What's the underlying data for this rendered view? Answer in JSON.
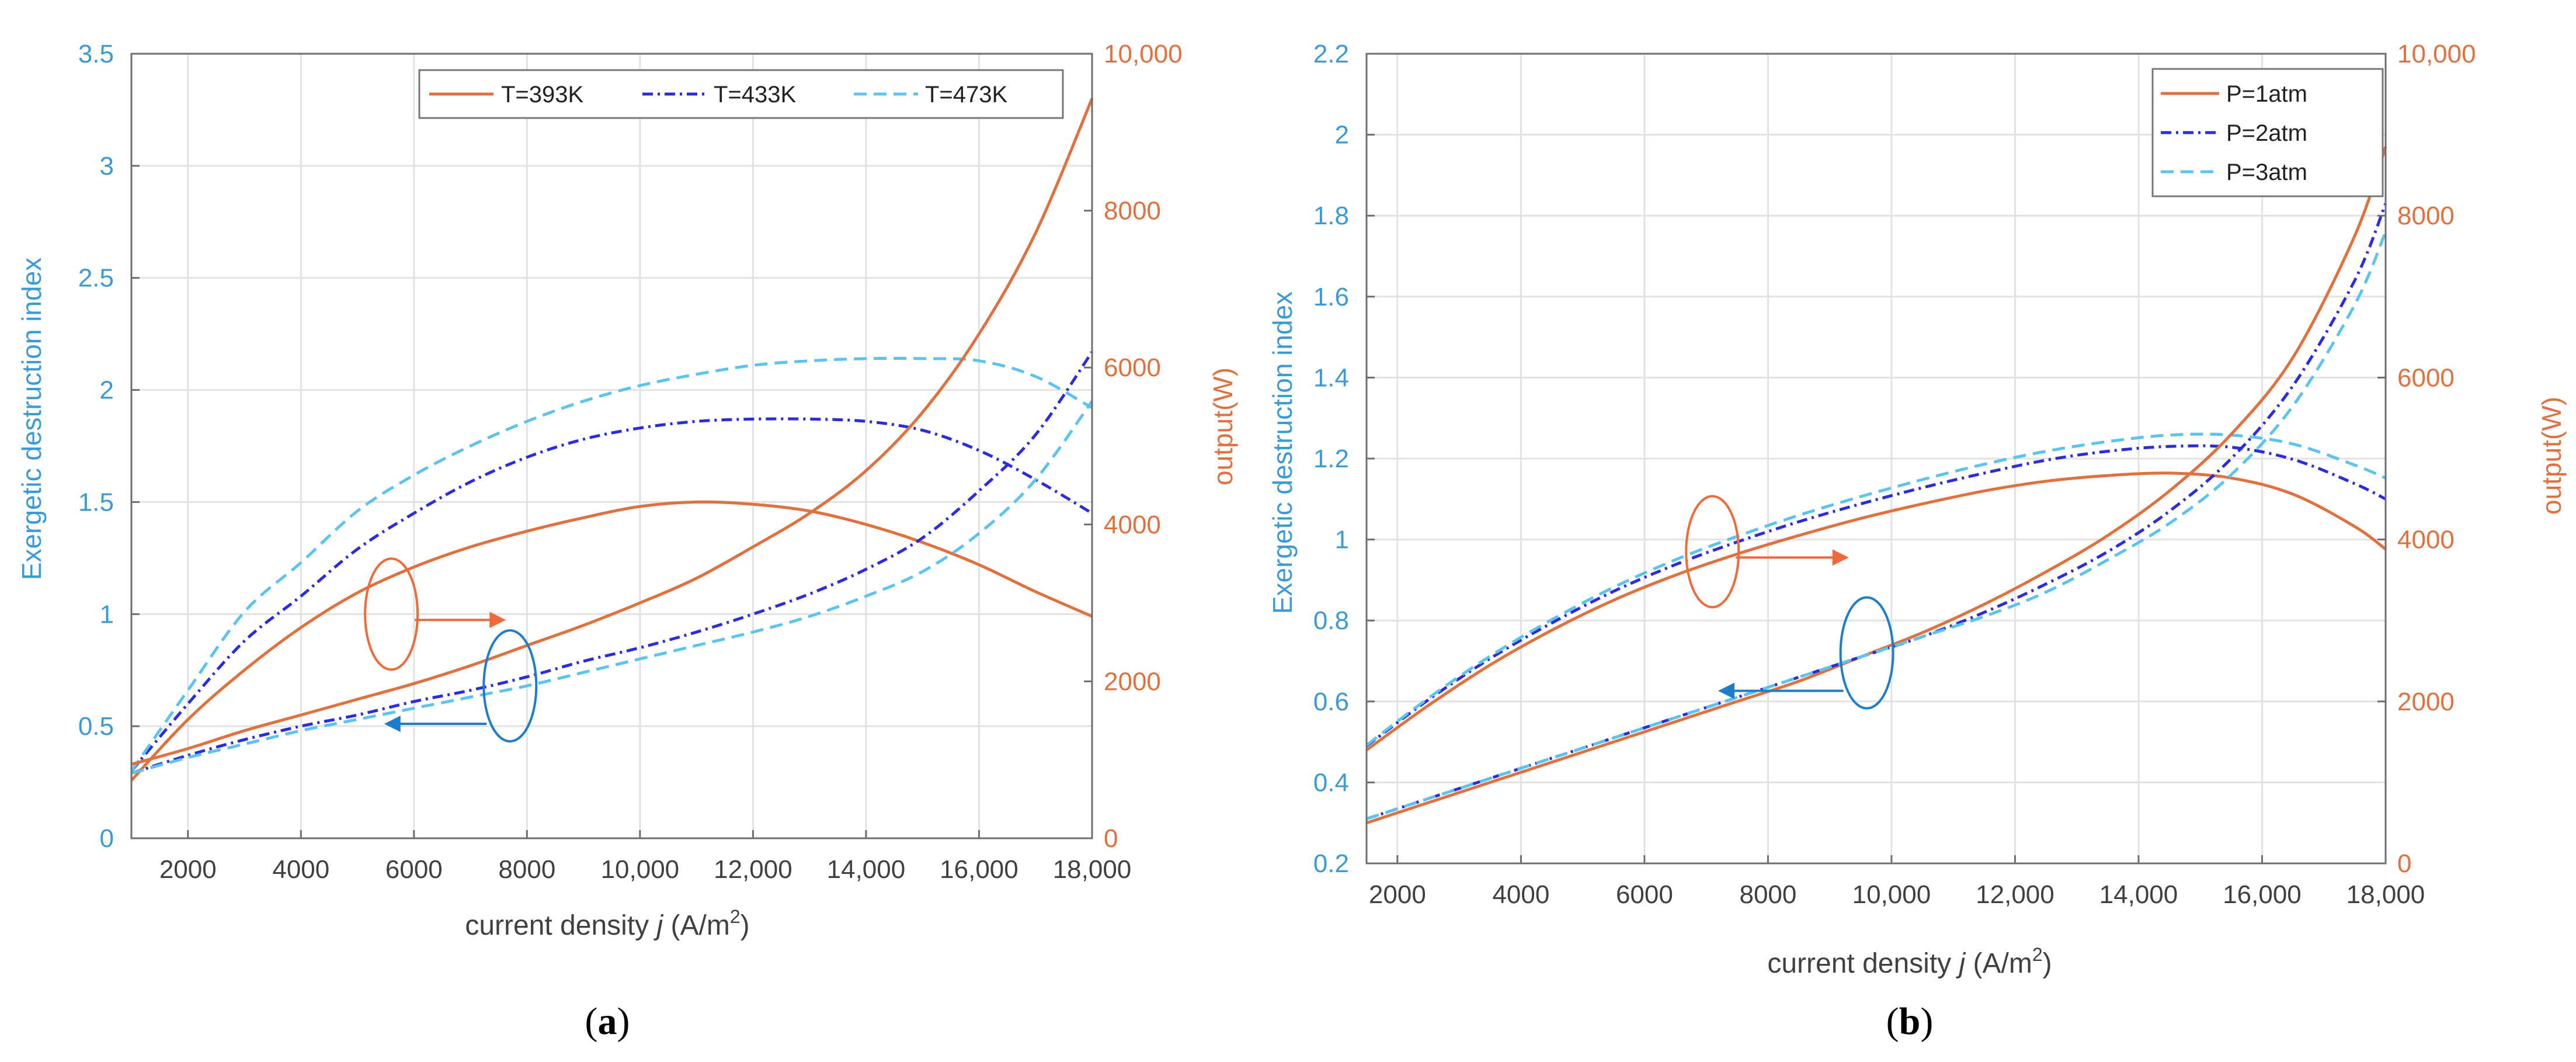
{
  "colors": {
    "orange": "#E0703E",
    "blue": "#2B2BE0",
    "cyan": "#5CC3EE",
    "left_axis": "#3A9AD6",
    "right_axis": "#E0703E",
    "grid": "#E2E2E2",
    "frame": "#6E6E6E",
    "orange_ellipse": "#EF6A3A",
    "blue_ellipse": "#1E7DC8"
  },
  "chart_data": [
    {
      "id": "a",
      "type": "line",
      "caption": {
        "open": "(",
        "letter": "a",
        "close": ")"
      },
      "xlabel": {
        "pre": "current density ",
        "var": "j",
        "unit": " (A/m",
        "sup": "2",
        "close": ")"
      },
      "ylabel_left": "Exergetic destruction index",
      "ylabel_right": "output(W)",
      "xlim": [
        1000,
        18000
      ],
      "ylim_left": [
        0,
        3.5
      ],
      "ylim_right": [
        0,
        10000
      ],
      "xticks": [
        2000,
        4000,
        6000,
        8000,
        10000,
        12000,
        14000,
        16000,
        18000
      ],
      "xtick_labels": [
        "2000",
        "4000",
        "6000",
        "8000",
        "10,000",
        "12,000",
        "14,000",
        "16,000",
        "18,000"
      ],
      "yticks_left": [
        0,
        0.5,
        1,
        1.5,
        2,
        2.5,
        3,
        3.5
      ],
      "ytick_labels_left": [
        "0",
        "0.5",
        "1",
        "1.5",
        "2",
        "2.5",
        "3",
        "3.5"
      ],
      "yticks_right": [
        0,
        2000,
        4000,
        6000,
        8000,
        10000
      ],
      "ytick_labels_right": [
        "0",
        "2000",
        "4000",
        "6000",
        "8000",
        "10,000"
      ],
      "grid": true,
      "legend_position": "top-right (horizontal)",
      "x": [
        1000,
        2000,
        3000,
        4000,
        5000,
        6000,
        7000,
        8000,
        9000,
        10000,
        11000,
        12000,
        13000,
        14000,
        15000,
        16000,
        17000,
        18000
      ],
      "series": [
        {
          "name": "T=393K",
          "style": "solid",
          "color": "orange",
          "axis": "right",
          "group": "output",
          "values": [
            737,
            1514,
            2143,
            2686,
            3129,
            3457,
            3714,
            3914,
            4086,
            4229,
            4286,
            4257,
            4171,
            4000,
            3771,
            3486,
            3143,
            2829
          ]
        },
        {
          "name": "T=433K",
          "style": "dashdot",
          "color": "blue",
          "axis": "right",
          "group": "output",
          "values": [
            857,
            1714,
            2514,
            3086,
            3686,
            4143,
            4543,
            4857,
            5086,
            5229,
            5314,
            5343,
            5343,
            5314,
            5200,
            4943,
            4571,
            4143
          ]
        },
        {
          "name": "T=473K",
          "style": "dashed",
          "color": "cyan",
          "axis": "right",
          "group": "output",
          "values": [
            857,
            1886,
            2886,
            3514,
            4171,
            4629,
            5000,
            5314,
            5571,
            5771,
            5914,
            6029,
            6086,
            6114,
            6114,
            6086,
            5886,
            5486
          ]
        },
        {
          "name": "T=393K",
          "style": "solid",
          "color": "orange",
          "axis": "left",
          "group": "exergetic",
          "values": [
            0.33,
            0.4,
            0.48,
            0.55,
            0.62,
            0.69,
            0.77,
            0.86,
            0.95,
            1.05,
            1.16,
            1.3,
            1.45,
            1.64,
            1.9,
            2.25,
            2.7,
            3.3
          ]
        },
        {
          "name": "T=433K",
          "style": "dashdot",
          "color": "blue",
          "axis": "left",
          "group": "exergetic",
          "values": [
            0.29,
            0.37,
            0.44,
            0.5,
            0.55,
            0.61,
            0.66,
            0.72,
            0.79,
            0.85,
            0.92,
            1.0,
            1.09,
            1.2,
            1.34,
            1.55,
            1.8,
            2.17
          ]
        },
        {
          "name": "T=473K",
          "style": "dashed",
          "color": "cyan",
          "axis": "left",
          "group": "exergetic",
          "values": [
            0.29,
            0.36,
            0.42,
            0.48,
            0.53,
            0.58,
            0.63,
            0.68,
            0.74,
            0.8,
            0.86,
            0.92,
            0.99,
            1.08,
            1.19,
            1.36,
            1.6,
            1.95
          ]
        }
      ],
      "annotations": [
        {
          "shape": "ellipse",
          "color": "orange_ellipse",
          "cx": 5600,
          "cy": 1.0,
          "axis": "left",
          "arrow_to_x": 7400,
          "arrow_direction": "right",
          "meaning": "orange ellipse points to output(W) axis"
        },
        {
          "shape": "ellipse",
          "color": "blue_ellipse",
          "cx": 7700,
          "cy": 0.68,
          "axis": "left",
          "arrow_to_x": 5700,
          "arrow_direction": "left",
          "meaning": "blue ellipse points to exergetic destruction index axis"
        }
      ]
    },
    {
      "id": "b",
      "type": "line",
      "caption": {
        "open": "(",
        "letter": "b",
        "close": ")"
      },
      "xlabel": {
        "pre": "current density ",
        "var": "j",
        "unit": " (A/m",
        "sup": "2",
        "close": ")"
      },
      "ylabel_left": "Exergetic destruction index",
      "ylabel_right": "output(W)",
      "xlim": [
        1500,
        18000
      ],
      "ylim_left": [
        0.2,
        2.2
      ],
      "ylim_right": [
        0,
        10000
      ],
      "xticks": [
        2000,
        4000,
        6000,
        8000,
        10000,
        12000,
        14000,
        16000,
        18000
      ],
      "xtick_labels": [
        "2000",
        "4000",
        "6000",
        "8000",
        "10,000",
        "12,000",
        "14,000",
        "16,000",
        "18,000"
      ],
      "yticks_left": [
        0.2,
        0.4,
        0.6,
        0.8,
        1,
        1.2,
        1.4,
        1.6,
        1.8,
        2,
        2.2
      ],
      "ytick_labels_left": [
        "0.2",
        "0.4",
        "0.6",
        "0.8",
        "1",
        "1.2",
        "1.4",
        "1.6",
        "1.8",
        "2",
        "2.2"
      ],
      "yticks_right": [
        0,
        2000,
        4000,
        6000,
        8000,
        10000
      ],
      "ytick_labels_right": [
        "0",
        "2000",
        "4000",
        "6000",
        "8000",
        "10,000"
      ],
      "grid": true,
      "legend_position": "top-right (vertical)",
      "x": [
        1500,
        2500,
        3500,
        4500,
        5500,
        6500,
        7500,
        8500,
        9500,
        10500,
        11500,
        12500,
        13500,
        14500,
        15500,
        16500,
        17500,
        18000
      ],
      "series": [
        {
          "name": "P=1atm",
          "style": "solid",
          "color": "orange",
          "axis": "right",
          "group": "output",
          "values": [
            1400,
            1950,
            2450,
            2880,
            3250,
            3560,
            3820,
            4050,
            4260,
            4440,
            4600,
            4720,
            4790,
            4820,
            4760,
            4560,
            4160,
            3880
          ]
        },
        {
          "name": "P=2atm",
          "style": "dashdot",
          "color": "blue",
          "axis": "right",
          "group": "output",
          "values": [
            1450,
            2020,
            2530,
            2970,
            3360,
            3690,
            3970,
            4220,
            4440,
            4640,
            4820,
            4980,
            5090,
            5150,
            5140,
            4990,
            4690,
            4500
          ]
        },
        {
          "name": "P=3atm",
          "style": "dashed",
          "color": "cyan",
          "axis": "right",
          "group": "output",
          "values": [
            1460,
            2040,
            2560,
            3010,
            3410,
            3750,
            4040,
            4300,
            4530,
            4740,
            4930,
            5090,
            5210,
            5290,
            5290,
            5180,
            4920,
            4760
          ]
        },
        {
          "name": "P=1atm",
          "style": "solid",
          "color": "orange",
          "axis": "left",
          "group": "exergetic",
          "values": [
            0.3,
            0.35,
            0.4,
            0.45,
            0.5,
            0.55,
            0.6,
            0.65,
            0.71,
            0.77,
            0.84,
            0.92,
            1.01,
            1.12,
            1.26,
            1.45,
            1.75,
            1.97
          ]
        },
        {
          "name": "P=2atm",
          "style": "dashdot",
          "color": "blue",
          "axis": "left",
          "group": "exergetic",
          "values": [
            0.31,
            0.36,
            0.41,
            0.46,
            0.51,
            0.56,
            0.61,
            0.66,
            0.71,
            0.76,
            0.82,
            0.89,
            0.97,
            1.07,
            1.2,
            1.38,
            1.64,
            1.83
          ]
        },
        {
          "name": "P=3atm",
          "style": "dashed",
          "color": "cyan",
          "axis": "left",
          "group": "exergetic",
          "values": [
            0.31,
            0.36,
            0.41,
            0.46,
            0.51,
            0.56,
            0.61,
            0.66,
            0.71,
            0.76,
            0.81,
            0.87,
            0.95,
            1.04,
            1.16,
            1.33,
            1.58,
            1.76
          ]
        }
      ],
      "annotations": [
        {
          "shape": "ellipse",
          "color": "orange_ellipse",
          "cx": 7100,
          "cy": 0.97,
          "axis": "left",
          "arrow_to_x": 9100,
          "arrow_direction": "right",
          "meaning": "orange ellipse points to output(W) axis"
        },
        {
          "shape": "ellipse",
          "color": "blue_ellipse",
          "cx": 9600,
          "cy": 0.72,
          "axis": "left",
          "arrow_to_x": 7400,
          "arrow_direction": "left",
          "meaning": "blue ellipse points to exergetic destruction index axis"
        }
      ]
    }
  ]
}
